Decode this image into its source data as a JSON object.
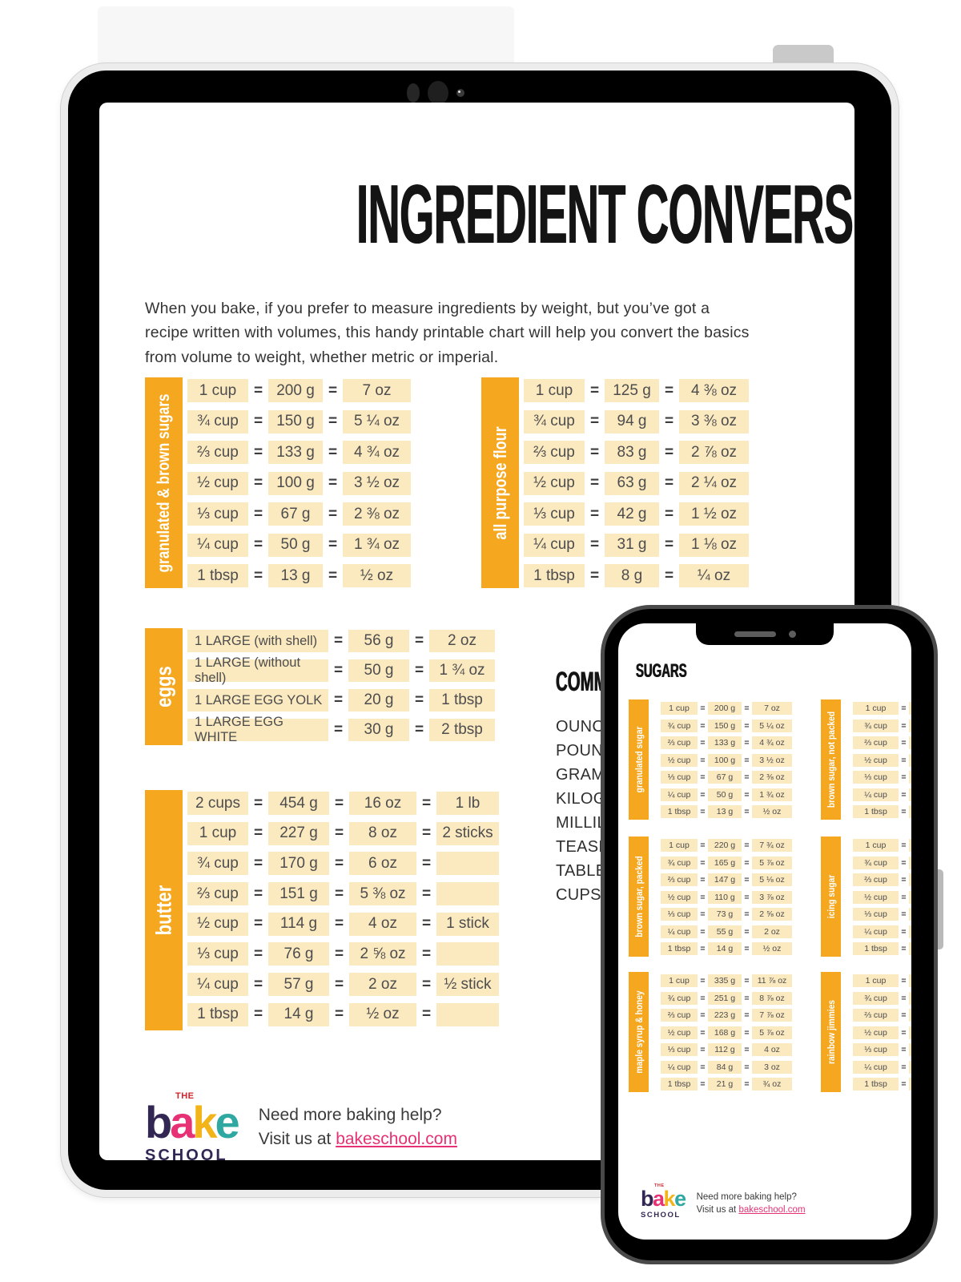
{
  "page": {
    "title": "INGREDIENT CONVERSIONS",
    "intro": "When you bake, if you prefer to measure ingredients by weight, but you’ve got a recipe written with volumes, this handy printable chart will help you convert the basics from volume to weight, whether metric or imperial."
  },
  "equals_sign": "=",
  "colors": {
    "accent_orange": "#F5A71F",
    "cell_cream": "#FBE9C0",
    "link_pink": "#E63274",
    "logo_navy": "#322753",
    "logo_pink": "#E63274",
    "logo_yellow": "#F2B418",
    "logo_teal": "#2FA8A2",
    "logo_red": "#D2222A"
  },
  "tablet_tables": [
    {
      "label": "granulated & brown sugars",
      "rows": [
        [
          "1 cup",
          "200 g",
          "7 oz"
        ],
        [
          "¾ cup",
          "150 g",
          "5 ¼ oz"
        ],
        [
          "⅔ cup",
          "133 g",
          "4 ¾ oz"
        ],
        [
          "½ cup",
          "100 g",
          "3 ½ oz"
        ],
        [
          "⅓ cup",
          "67 g",
          "2 ⅜ oz"
        ],
        [
          "¼ cup",
          "50 g",
          "1 ¾ oz"
        ],
        [
          "1 tbsp",
          "13 g",
          "½ oz"
        ]
      ]
    },
    {
      "label": "all purpose flour",
      "rows": [
        [
          "1 cup",
          "125 g",
          "4 ⅜ oz"
        ],
        [
          "¾ cup",
          "94 g",
          "3 ⅜ oz"
        ],
        [
          "⅔ cup",
          "83 g",
          "2 ⅞ oz"
        ],
        [
          "½ cup",
          "63 g",
          "2 ¼ oz"
        ],
        [
          "⅓ cup",
          "42 g",
          "1 ½ oz"
        ],
        [
          "¼ cup",
          "31 g",
          "1 ⅛ oz"
        ],
        [
          "1 tbsp",
          "8 g",
          "¼ oz"
        ]
      ]
    },
    {
      "label": "eggs",
      "rows": [
        [
          "1 LARGE (with shell)",
          "56 g",
          "2 oz"
        ],
        [
          "1 LARGE (without shell)",
          "50 g",
          "1 ¾ oz"
        ],
        [
          "1 LARGE EGG YOLK",
          "20 g",
          "1 tbsp"
        ],
        [
          "1 LARGE EGG WHITE",
          "30 g",
          "2 tbsp"
        ]
      ]
    },
    {
      "label": "butter",
      "rows": [
        [
          "2 cups",
          "454 g",
          "16 oz",
          "1 lb"
        ],
        [
          "1 cup",
          "227 g",
          "8 oz",
          "2 sticks"
        ],
        [
          "¾ cup",
          "170 g",
          "6 oz",
          ""
        ],
        [
          "⅔ cup",
          "151 g",
          "5 ⅜ oz",
          ""
        ],
        [
          "½ cup",
          "114 g",
          "4 oz",
          "1 stick"
        ],
        [
          "⅓ cup",
          "76 g",
          "2 ⅝ oz",
          ""
        ],
        [
          "¼ cup",
          "57 g",
          "2 oz",
          "½ stick"
        ],
        [
          "1 tbsp",
          "14 g",
          "½ oz",
          ""
        ]
      ]
    }
  ],
  "abbreviations": {
    "heading": "COMMON ABBREVIATIONS",
    "items": [
      "OUNCES",
      "POUNDS",
      "GRAMS",
      "KILOGRAMS",
      "MILLILITRES",
      "TEASPOONS",
      "TABLESPOONS",
      "CUPS"
    ]
  },
  "footer": {
    "the": "THE",
    "bake_b": "b",
    "bake_a": "a",
    "bake_k": "k",
    "bake_e": "e",
    "school": "SCHOOL",
    "help_line1": "Need more baking help?",
    "help_prefix": "Visit us at ",
    "link": "bakeschool.com"
  },
  "phone": {
    "heading": "SUGARS",
    "tables": [
      {
        "label": "granulated sugar",
        "rows": [
          [
            "1 cup",
            "200 g",
            "7 oz"
          ],
          [
            "¾ cup",
            "150 g",
            "5 ¼ oz"
          ],
          [
            "⅔ cup",
            "133 g",
            "4 ¾ oz"
          ],
          [
            "½ cup",
            "100 g",
            "3 ½ oz"
          ],
          [
            "⅓ cup",
            "67 g",
            "2 ⅜ oz"
          ],
          [
            "¼ cup",
            "50 g",
            "1 ¾ oz"
          ],
          [
            "1 tbsp",
            "13 g",
            "½ oz"
          ]
        ]
      },
      {
        "label": "brown sugar, not packed",
        "rows": [
          [
            "1 cup",
            "",
            ""
          ],
          [
            "¾ cup",
            "",
            ""
          ],
          [
            "⅔ cup",
            "",
            ""
          ],
          [
            "½ cup",
            "",
            ""
          ],
          [
            "⅓ cup",
            "",
            ""
          ],
          [
            "¼ cup",
            "",
            ""
          ],
          [
            "1 tbsp",
            "",
            ""
          ]
        ]
      },
      {
        "label": "brown sugar, packed",
        "rows": [
          [
            "1 cup",
            "220 g",
            "7 ¾ oz"
          ],
          [
            "¾ cup",
            "165 g",
            "5 ⅞ oz"
          ],
          [
            "⅔ cup",
            "147 g",
            "5 ⅛ oz"
          ],
          [
            "½ cup",
            "110 g",
            "3 ⅞ oz"
          ],
          [
            "⅓ cup",
            "73 g",
            "2 ⅝ oz"
          ],
          [
            "¼ cup",
            "55 g",
            "2 oz"
          ],
          [
            "1 tbsp",
            "14 g",
            "½ oz"
          ]
        ]
      },
      {
        "label": "icing sugar",
        "rows": [
          [
            "1 cup",
            "",
            ""
          ],
          [
            "¾ cup",
            "",
            ""
          ],
          [
            "⅔ cup",
            "",
            ""
          ],
          [
            "½ cup",
            "",
            ""
          ],
          [
            "⅓ cup",
            "",
            ""
          ],
          [
            "¼ cup",
            "",
            ""
          ],
          [
            "1 tbsp",
            "",
            ""
          ]
        ]
      },
      {
        "label": "maple syrup & honey",
        "rows": [
          [
            "1 cup",
            "335 g",
            "11 ⅞ oz"
          ],
          [
            "¾ cup",
            "251 g",
            "8 ⅞ oz"
          ],
          [
            "⅔ cup",
            "223 g",
            "7 ⅞ oz"
          ],
          [
            "½ cup",
            "168 g",
            "5 ⅞ oz"
          ],
          [
            "⅓ cup",
            "112 g",
            "4 oz"
          ],
          [
            "¼ cup",
            "84 g",
            "3 oz"
          ],
          [
            "1 tbsp",
            "21 g",
            "¾ oz"
          ]
        ]
      },
      {
        "label": "rainbow jimmies",
        "rows": [
          [
            "1 cup",
            "",
            ""
          ],
          [
            "¾ cup",
            "",
            ""
          ],
          [
            "⅔ cup",
            "",
            ""
          ],
          [
            "½ cup",
            "",
            ""
          ],
          [
            "⅓ cup",
            "",
            ""
          ],
          [
            "¼ cup",
            "",
            ""
          ],
          [
            "1 tbsp",
            "",
            ""
          ]
        ]
      }
    ]
  }
}
